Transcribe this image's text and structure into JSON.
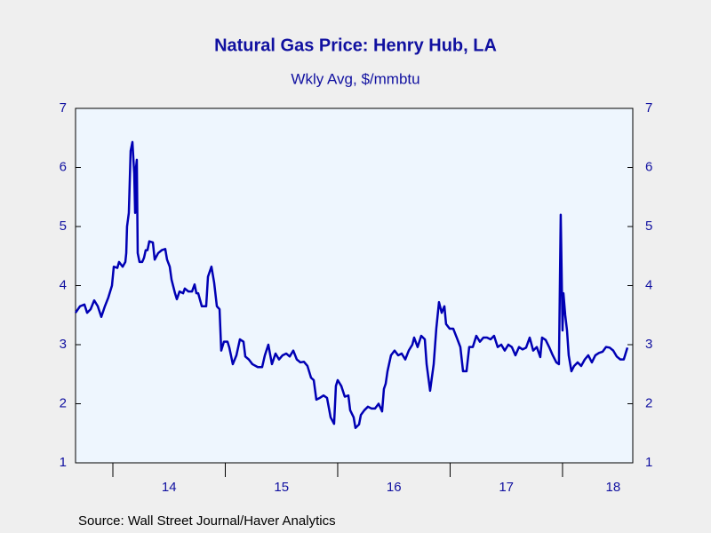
{
  "chart_data": {
    "type": "line",
    "title": "Natural Gas Price: Henry Hub, LA",
    "subtitle": "Wkly Avg, $/mmbtu",
    "source": "Source:  Wall Street Journal/Haver Analytics",
    "color": "#0000b4",
    "x": [
      13.668,
      13.708,
      13.747,
      13.771,
      13.802,
      13.834,
      13.866,
      13.897,
      13.929,
      13.96,
      13.992,
      14.008,
      14.04,
      14.055,
      14.087,
      14.111,
      14.119,
      14.126,
      14.142,
      14.158,
      14.174,
      14.19,
      14.198,
      14.206,
      14.213,
      14.221,
      14.237,
      14.261,
      14.277,
      14.292,
      14.308,
      14.324,
      14.356,
      14.372,
      14.403,
      14.435,
      14.466,
      14.482,
      14.506,
      14.522,
      14.553,
      14.569,
      14.593,
      14.625,
      14.64,
      14.672,
      14.704,
      14.727,
      14.743,
      14.759,
      14.791,
      14.83,
      14.846,
      14.877,
      14.901,
      14.925,
      14.949,
      14.964,
      14.988,
      15.02,
      15.036,
      15.067,
      15.099,
      15.13,
      15.162,
      15.178,
      15.209,
      15.241,
      15.289,
      15.328,
      15.352,
      15.383,
      15.415,
      15.447,
      15.478,
      15.51,
      15.542,
      15.573,
      15.605,
      15.636,
      15.668,
      15.7,
      15.731,
      15.763,
      15.787,
      15.81,
      15.842,
      15.874,
      15.905,
      15.937,
      15.968,
      15.984,
      16.0,
      16.032,
      16.063,
      16.095,
      16.111,
      16.142,
      16.158,
      16.19,
      16.206,
      16.237,
      16.269,
      16.3,
      16.332,
      16.364,
      16.395,
      16.411,
      16.427,
      16.443,
      16.474,
      16.506,
      16.538,
      16.569,
      16.601,
      16.632,
      16.664,
      16.68,
      16.711,
      16.743,
      16.775,
      16.791,
      16.822,
      16.854,
      16.877,
      16.901,
      16.925,
      16.949,
      16.964,
      16.996,
      17.028,
      17.059,
      17.091,
      17.115,
      17.146,
      17.17,
      17.202,
      17.233,
      17.265,
      17.296,
      17.328,
      17.36,
      17.391,
      17.423,
      17.455,
      17.486,
      17.518,
      17.549,
      17.581,
      17.613,
      17.644,
      17.676,
      17.708,
      17.739,
      17.771,
      17.802,
      17.818,
      17.85,
      17.881,
      17.913,
      17.945,
      17.968,
      17.984,
      18.0,
      18.008,
      18.024,
      18.04,
      18.055,
      18.079,
      18.103,
      18.134,
      18.166,
      18.198,
      18.229,
      18.261,
      18.292,
      18.324,
      18.356,
      18.387,
      18.419,
      18.451,
      18.482,
      18.514,
      18.545,
      18.577
    ],
    "values": [
      3.54,
      3.65,
      3.68,
      3.54,
      3.6,
      3.75,
      3.65,
      3.47,
      3.65,
      3.8,
      4.0,
      4.32,
      4.3,
      4.4,
      4.32,
      4.4,
      4.55,
      5.0,
      5.23,
      6.28,
      6.43,
      5.9,
      5.23,
      6.0,
      6.13,
      4.55,
      4.4,
      4.4,
      4.47,
      4.6,
      4.6,
      4.75,
      4.73,
      4.44,
      4.55,
      4.6,
      4.62,
      4.44,
      4.32,
      4.1,
      3.87,
      3.77,
      3.9,
      3.87,
      3.95,
      3.9,
      3.9,
      4.02,
      3.87,
      3.87,
      3.65,
      3.65,
      4.15,
      4.32,
      4.05,
      3.65,
      3.6,
      2.9,
      3.05,
      3.05,
      2.95,
      2.67,
      2.82,
      3.09,
      3.05,
      2.8,
      2.75,
      2.67,
      2.62,
      2.62,
      2.82,
      3.0,
      2.67,
      2.85,
      2.75,
      2.82,
      2.85,
      2.8,
      2.9,
      2.75,
      2.7,
      2.71,
      2.64,
      2.44,
      2.4,
      2.07,
      2.1,
      2.14,
      2.1,
      1.77,
      1.66,
      2.3,
      2.4,
      2.3,
      2.12,
      2.14,
      1.89,
      1.77,
      1.59,
      1.65,
      1.81,
      1.89,
      1.95,
      1.92,
      1.92,
      2.0,
      1.87,
      2.25,
      2.34,
      2.55,
      2.82,
      2.9,
      2.82,
      2.85,
      2.75,
      2.9,
      3.0,
      3.12,
      2.96,
      3.15,
      3.09,
      2.67,
      2.22,
      2.67,
      3.27,
      3.72,
      3.54,
      3.65,
      3.35,
      3.27,
      3.27,
      3.12,
      2.96,
      2.55,
      2.55,
      2.96,
      2.96,
      3.15,
      3.05,
      3.12,
      3.12,
      3.09,
      3.15,
      2.96,
      3.0,
      2.9,
      3.0,
      2.96,
      2.82,
      2.96,
      2.92,
      2.95,
      3.12,
      2.9,
      2.96,
      2.79,
      3.12,
      3.08,
      2.96,
      2.82,
      2.7,
      2.67,
      5.2,
      3.24,
      3.87,
      3.5,
      3.24,
      2.82,
      2.55,
      2.64,
      2.7,
      2.64,
      2.75,
      2.82,
      2.7,
      2.82,
      2.86,
      2.88,
      2.96,
      2.95,
      2.9,
      2.8,
      2.75,
      2.75,
      2.95
    ],
    "xlim": [
      13.668,
      18.625
    ],
    "xticks": [
      14,
      15,
      16,
      17,
      18
    ],
    "xlabels": [
      {
        "value": 14.5,
        "label": "14"
      },
      {
        "value": 15.5,
        "label": "15"
      },
      {
        "value": 16.5,
        "label": "16"
      },
      {
        "value": 17.5,
        "label": "17"
      },
      {
        "value": 18.45,
        "label": "18"
      }
    ],
    "ylim": [
      1,
      7
    ],
    "yticks": [
      1,
      2,
      3,
      4,
      5,
      6,
      7
    ],
    "y2lim": [
      1,
      7
    ],
    "y2ticks": [
      1,
      2,
      3,
      4,
      5,
      6,
      7
    ]
  }
}
